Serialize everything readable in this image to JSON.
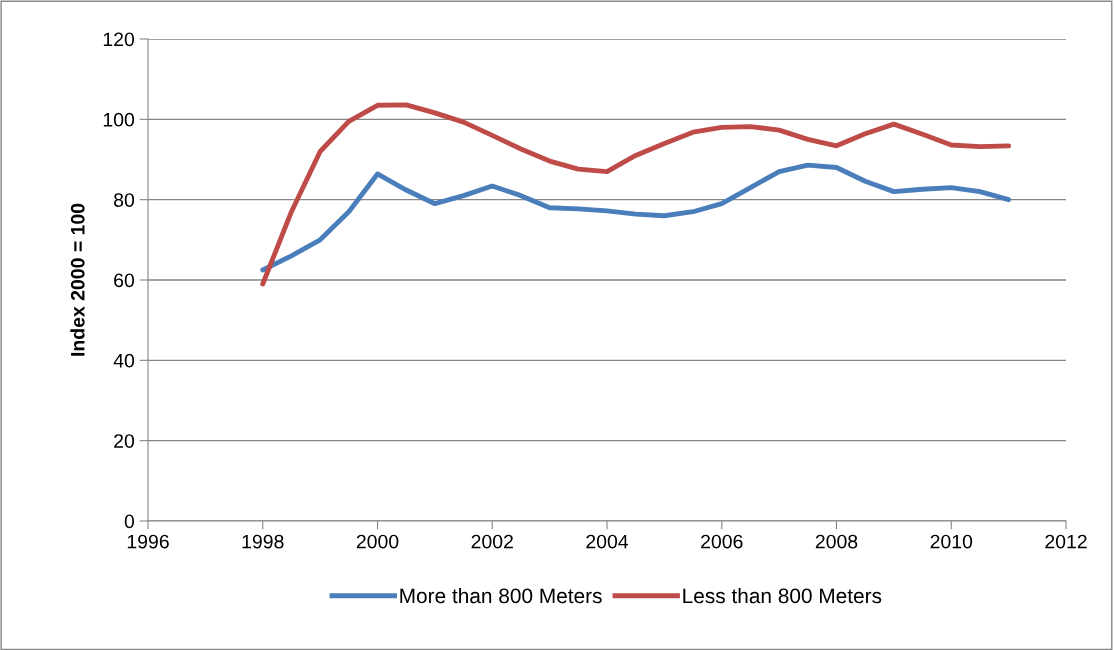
{
  "chart_data": {
    "type": "line",
    "ylabel": "Index 2000 = 100",
    "x": [
      1998,
      1998.5,
      1999,
      1999.5,
      2000,
      2000.5,
      2001,
      2001.5,
      2002,
      2002.5,
      2003,
      2003.5,
      2004,
      2004.5,
      2005,
      2005.5,
      2006,
      2006.5,
      2007,
      2007.5,
      2008,
      2008.5,
      2009,
      2009.5,
      2010,
      2010.5,
      2011
    ],
    "series": [
      {
        "name": "More than 800 Meters",
        "color": "#4a7ebb",
        "values": [
          62.5,
          66,
          70,
          77,
          86.4,
          82.4,
          79,
          81,
          83.4,
          81,
          78,
          77.7,
          77.2,
          76.4,
          76,
          77,
          79,
          83,
          87,
          88.6,
          88,
          84.6,
          82,
          82.6,
          83,
          82,
          80
        ]
      },
      {
        "name": "Less than 800 Meters",
        "color": "#be4b48",
        "values": [
          59,
          77,
          92,
          99.5,
          103.5,
          103.6,
          101.6,
          99.3,
          96,
          92.6,
          89.6,
          87.6,
          87,
          91,
          94,
          96.8,
          98,
          98.2,
          97.3,
          95,
          93.4,
          96.4,
          98.8,
          96.3,
          93.6,
          93.2,
          93.4
        ]
      }
    ],
    "xlim": [
      1996,
      2012
    ],
    "xticks": [
      1996,
      1998,
      2000,
      2002,
      2004,
      2006,
      2008,
      2010,
      2012
    ],
    "ylim": [
      0,
      120
    ],
    "yticks": [
      0,
      20,
      40,
      60,
      80,
      100,
      120
    ],
    "grid": "y",
    "legend": "bottom",
    "marker": "none",
    "line_style": "solid"
  }
}
